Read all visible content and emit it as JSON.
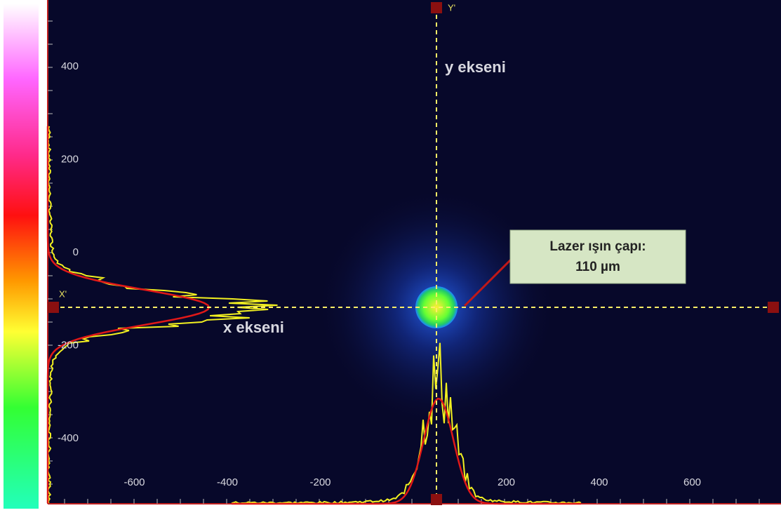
{
  "axes": {
    "x_ticks": [
      -600,
      -400,
      -200,
      200,
      400,
      600
    ],
    "y_ticks": [
      400,
      200,
      0,
      -200,
      -400
    ]
  },
  "labels": {
    "y_axis": "y ekseni",
    "x_axis": "x ekseni",
    "y_marker": "Y'",
    "x_marker": "X'"
  },
  "callout": {
    "line1": "Lazer ışın çapı:",
    "line2": "110 µm"
  }
}
